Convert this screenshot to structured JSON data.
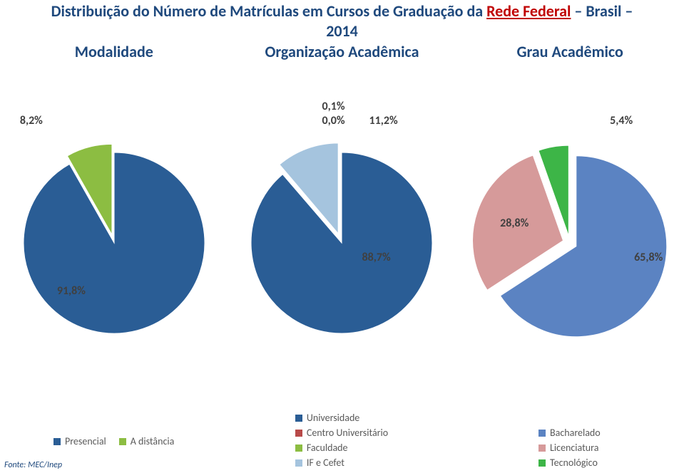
{
  "title": {
    "prefix": "Distribuição do Número de Matrículas em Cursos de Graduação da ",
    "highlight": "Rede Federal",
    "suffix": " – Brasil – ",
    "year": "2014",
    "fontsize": 22,
    "color_main": "#1f497d",
    "color_highlight": "#c00000"
  },
  "columns": {
    "modalidade": "Modalidade",
    "organizacao": "Organização Acadêmica",
    "grau": "Grau Acadêmico",
    "fontsize": 22,
    "color": "#1f497d"
  },
  "charts": {
    "modalidade": {
      "type": "pie",
      "radius": 127,
      "background": "#ffffff",
      "slices": [
        {
          "label": "Presencial",
          "value": 91.8,
          "display": "91,8%",
          "color": "#2a5d95",
          "explode": 0
        },
        {
          "label": "A distância",
          "value": 8.2,
          "display": "8,2%",
          "color": "#8cbd42",
          "explode": 12
        }
      ],
      "label_fontsize": 16,
      "label_color": "#404040"
    },
    "organizacao": {
      "type": "pie",
      "radius": 127,
      "background": "#ffffff",
      "slices": [
        {
          "label": "Universidade",
          "value": 88.7,
          "display": "88,7%",
          "color": "#2a5d95",
          "explode": 0
        },
        {
          "label": "Centro Universitário",
          "value": 0.1,
          "display": "0,1%",
          "color": "#b84a49",
          "explode": 14
        },
        {
          "label": "Faculdade",
          "value": 0.0,
          "display": "0,0%",
          "color": "#8cbd42",
          "explode": 14
        },
        {
          "label": "IF e Cefet",
          "value": 11.2,
          "display": "11,2%",
          "color": "#a5c4de",
          "explode": 14
        }
      ],
      "label_fontsize": 16,
      "label_color": "#404040"
    },
    "grau": {
      "type": "pie",
      "radius": 127,
      "background": "#ffffff",
      "slices": [
        {
          "label": "Bacharelado",
          "value": 65.8,
          "display": "65,8%",
          "color": "#5b83c2",
          "explode": 10
        },
        {
          "label": "Licenciatura",
          "value": 28.8,
          "display": "28,8%",
          "color": "#d69a9a",
          "explode": 10
        },
        {
          "label": "Tecnológico",
          "value": 5.4,
          "display": "5,4%",
          "color": "#3db547",
          "explode": 10
        }
      ],
      "label_fontsize": 16,
      "label_color": "#404040"
    }
  },
  "legends": {
    "modalidade": {
      "items": [
        {
          "label": "Presencial",
          "color": "#2a5d95"
        },
        {
          "label": "A distância",
          "color": "#8cbd42"
        }
      ],
      "layout": "horizontal",
      "fontsize": 14
    },
    "organizacao": {
      "items": [
        {
          "label": "Universidade",
          "color": "#2a5d95"
        },
        {
          "label": "Centro Universitário",
          "color": "#b84a49"
        },
        {
          "label": "Faculdade",
          "color": "#8cbd42"
        },
        {
          "label": "IF e Cefet",
          "color": "#a5c4de"
        }
      ],
      "layout": "vertical",
      "fontsize": 14
    },
    "grau": {
      "items": [
        {
          "label": "Bacharelado",
          "color": "#5b83c2"
        },
        {
          "label": "Licenciatura",
          "color": "#d69a9a"
        },
        {
          "label": "Tecnológico",
          "color": "#3db547"
        }
      ],
      "layout": "vertical",
      "fontsize": 14
    }
  },
  "source": {
    "text": "Fonte: MEC/Inep",
    "fontsize": 12,
    "color": "#1f497d"
  }
}
